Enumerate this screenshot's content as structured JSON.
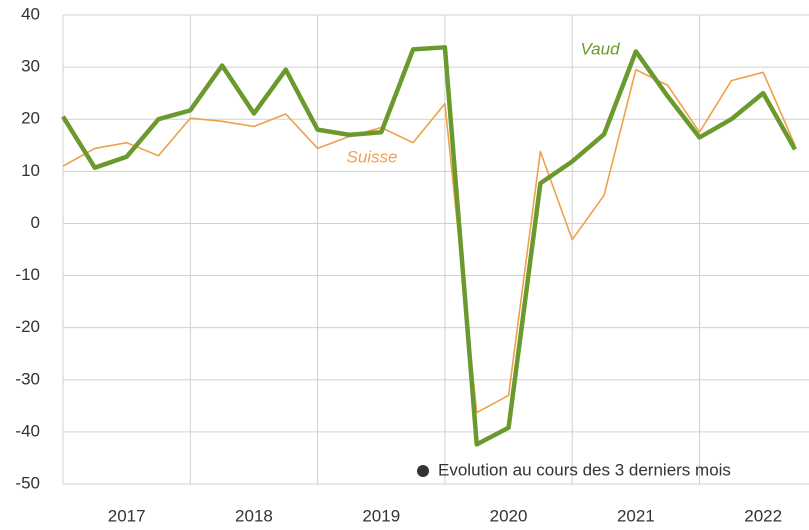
{
  "chart_data": {
    "type": "line",
    "x": [
      2017,
      2017.25,
      2017.5,
      2017.75,
      2018,
      2018.25,
      2018.5,
      2018.75,
      2019,
      2019.25,
      2019.5,
      2019.75,
      2020,
      2020.25,
      2020.5,
      2020.75,
      2021,
      2021.25,
      2021.5,
      2021.75,
      2022,
      2022.25,
      2022.5,
      2022.75
    ],
    "series": [
      {
        "name": "Suisse",
        "color": "#f0a04b",
        "values": [
          11,
          14.4,
          15.5,
          13,
          20.2,
          19.6,
          18.6,
          21,
          14.4,
          16.7,
          18.4,
          15.5,
          23,
          -36.3,
          -33,
          13.8,
          -3.1,
          5.4,
          29.5,
          26.5,
          17.5,
          27.4,
          29,
          15
        ]
      },
      {
        "name": "Vaud",
        "color": "#6a9a2e",
        "values": [
          20.5,
          10.7,
          12.8,
          20,
          21.7,
          30.3,
          21.1,
          29.5,
          18,
          17,
          17.5,
          33.4,
          33.8,
          -42.4,
          -39.2,
          7.7,
          11.9,
          17.1,
          33,
          24.4,
          16.5,
          20,
          25,
          14.2
        ]
      }
    ],
    "xlim": [
      2017,
      2022.86
    ],
    "xticks": [
      {
        "value": 2017.5,
        "label": "2017"
      },
      {
        "value": 2018.5,
        "label": "2018"
      },
      {
        "value": 2019.5,
        "label": "2019"
      },
      {
        "value": 2020.5,
        "label": "2020"
      },
      {
        "value": 2021.5,
        "label": "2021"
      },
      {
        "value": 2022.5,
        "label": "2022"
      }
    ],
    "xgrid": [
      2018,
      2019,
      2020,
      2021,
      2022
    ],
    "ylim": [
      -50,
      40
    ],
    "yticks": [
      -50,
      -40,
      -30,
      -20,
      -10,
      0,
      10,
      20,
      30,
      40
    ],
    "grid": true,
    "note": "Evolution au cours des 3 derniers mois"
  }
}
